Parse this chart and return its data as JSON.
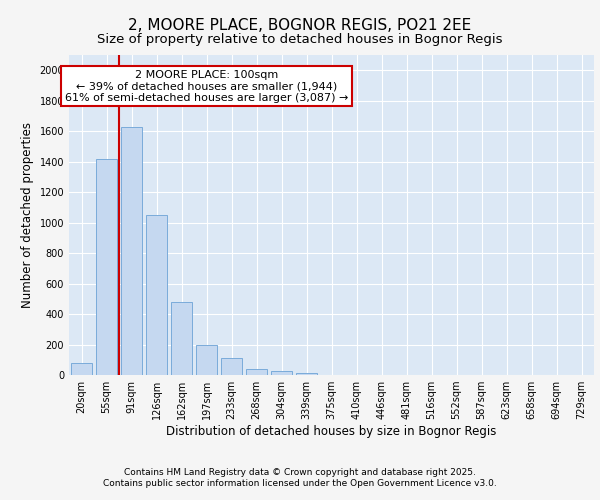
{
  "title": "2, MOORE PLACE, BOGNOR REGIS, PO21 2EE",
  "subtitle": "Size of property relative to detached houses in Bognor Regis",
  "xlabel": "Distribution of detached houses by size in Bognor Regis",
  "ylabel": "Number of detached properties",
  "categories": [
    "20sqm",
    "55sqm",
    "91sqm",
    "126sqm",
    "162sqm",
    "197sqm",
    "233sqm",
    "268sqm",
    "304sqm",
    "339sqm",
    "375sqm",
    "410sqm",
    "446sqm",
    "481sqm",
    "516sqm",
    "552sqm",
    "587sqm",
    "623sqm",
    "658sqm",
    "694sqm",
    "729sqm"
  ],
  "values": [
    80,
    1420,
    1625,
    1050,
    480,
    200,
    110,
    40,
    25,
    10,
    0,
    0,
    0,
    0,
    0,
    0,
    0,
    0,
    0,
    0,
    0
  ],
  "bar_color": "#c5d8f0",
  "bar_edge_color": "#7aabda",
  "bg_color": "#dce8f5",
  "grid_color": "#ffffff",
  "vline_x": 1.5,
  "vline_color": "#cc0000",
  "annotation_text": "2 MOORE PLACE: 100sqm\n← 39% of detached houses are smaller (1,944)\n61% of semi-detached houses are larger (3,087) →",
  "annotation_box_color": "#cc0000",
  "ylim": [
    0,
    2100
  ],
  "yticks": [
    0,
    200,
    400,
    600,
    800,
    1000,
    1200,
    1400,
    1600,
    1800,
    2000
  ],
  "footer_line1": "Contains HM Land Registry data © Crown copyright and database right 2025.",
  "footer_line2": "Contains public sector information licensed under the Open Government Licence v3.0.",
  "title_fontsize": 11,
  "subtitle_fontsize": 9.5,
  "axis_label_fontsize": 8.5,
  "tick_fontsize": 7,
  "annotation_fontsize": 8,
  "footer_fontsize": 6.5
}
